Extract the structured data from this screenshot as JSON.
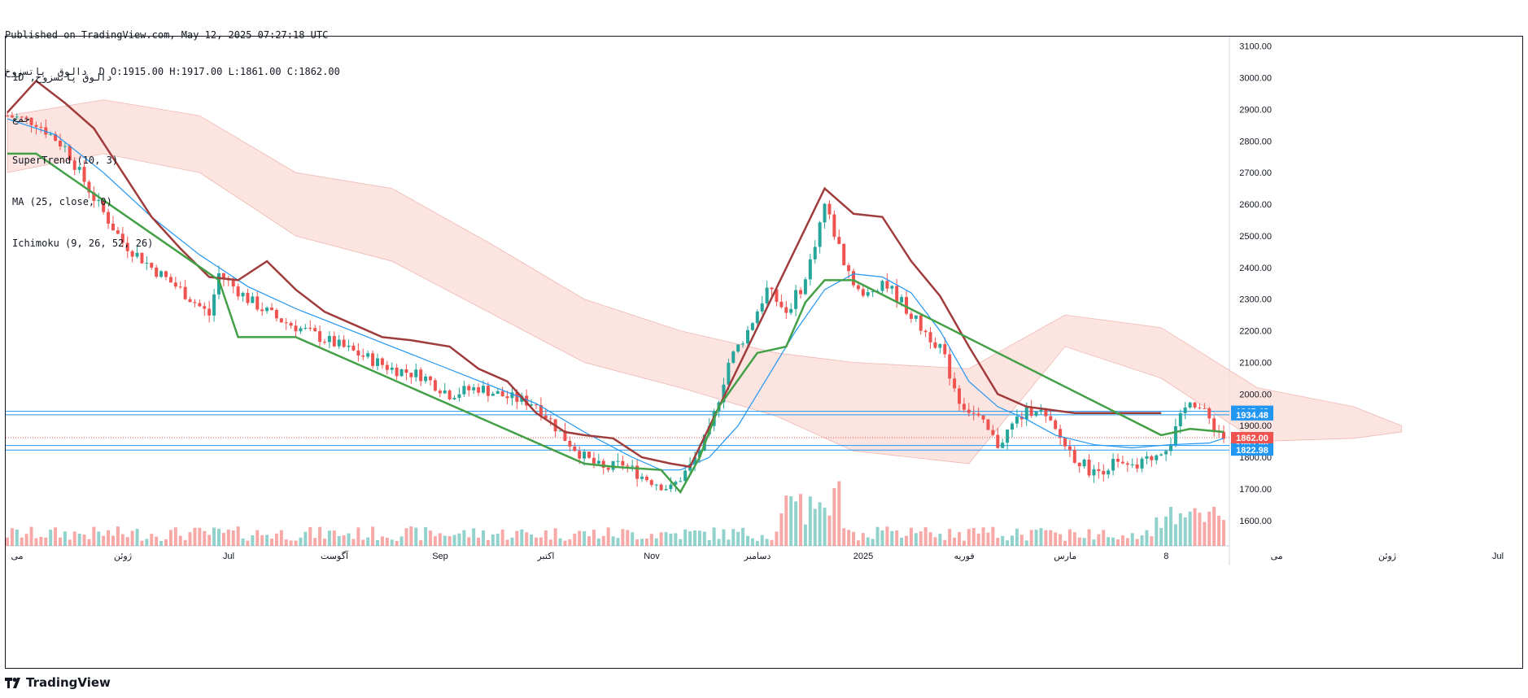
{
  "header": {
    "published": "Published on TradingView.com, May 12, 2025 07:27:18 UTC",
    "ohlc_line": "دالوق  پاتسزوخ  D O:1915.00 H:1917.00 L:1861.00 C:1862.00"
  },
  "legend": {
    "symbol": "1D ,دالوق پاتسزوخ",
    "exchange": "جمع",
    "supertrend": "SuperTrend (10, 3)",
    "ma": "MA (25, close, 0)",
    "ichimoku": "Ichimoku (9, 26, 52, 26)"
  },
  "brand": {
    "name": "TradingView",
    "icon": "tradingview-logo-icon"
  },
  "colors": {
    "up": "#26a69a",
    "down": "#ef5350",
    "supertrend_up": "#43a047",
    "supertrend_down": "#a13c3c",
    "ma": "#2196f3",
    "cloud_bear": "#fcdcd8",
    "cloud_bull": "#d5efd3",
    "hline": "#2196f3",
    "price_label": "#ef5350"
  },
  "chart_data": {
    "type": "candlestick",
    "ylim": [
      1520,
      3130
    ],
    "y_ticks": [
      1600,
      1700,
      1800,
      1900,
      2000,
      2100,
      2200,
      2300,
      2400,
      2500,
      2600,
      2700,
      2800,
      2900,
      3000,
      3100
    ],
    "y_tick_labels": [
      "1600.00",
      "1700.00",
      "1800.00",
      "1900.00",
      "2000.00",
      "2100.00",
      "2200.00",
      "2300.00",
      "2400.00",
      "2500.00",
      "2600.00",
      "2700.00",
      "2800.00",
      "2900.00",
      "3000.00",
      "3100.00"
    ],
    "x_labels": [
      "می",
      "ژوئن",
      "Jul",
      "آگوست",
      "Sep",
      "اکتبر",
      "Nov",
      "دسامبر",
      "2025",
      "فوریه",
      "مارس",
      "8",
      "می",
      "ژوئن",
      "Jul"
    ],
    "x_label_bars": [
      0,
      22,
      44,
      66,
      88,
      110,
      132,
      154,
      176,
      197,
      218,
      239,
      262,
      285,
      308
    ],
    "bar_count_visible": 330,
    "price_series": [
      [
        0,
        2880
      ],
      [
        6,
        2860
      ],
      [
        12,
        2780
      ],
      [
        18,
        2620
      ],
      [
        24,
        2480
      ],
      [
        30,
        2400
      ],
      [
        36,
        2330
      ],
      [
        42,
        2250
      ],
      [
        44,
        2380
      ],
      [
        50,
        2300
      ],
      [
        56,
        2240
      ],
      [
        62,
        2200
      ],
      [
        68,
        2160
      ],
      [
        74,
        2120
      ],
      [
        80,
        2080
      ],
      [
        86,
        2060
      ],
      [
        92,
        2000
      ],
      [
        98,
        2020
      ],
      [
        104,
        1990
      ],
      [
        110,
        1970
      ],
      [
        116,
        1860
      ],
      [
        120,
        1800
      ],
      [
        124,
        1760
      ],
      [
        128,
        1780
      ],
      [
        132,
        1740
      ],
      [
        138,
        1700
      ],
      [
        142,
        1770
      ],
      [
        146,
        1880
      ],
      [
        150,
        2100
      ],
      [
        154,
        2200
      ],
      [
        158,
        2330
      ],
      [
        162,
        2260
      ],
      [
        166,
        2360
      ],
      [
        170,
        2600
      ],
      [
        174,
        2420
      ],
      [
        178,
        2300
      ],
      [
        182,
        2360
      ],
      [
        186,
        2290
      ],
      [
        190,
        2210
      ],
      [
        194,
        2150
      ],
      [
        198,
        1980
      ],
      [
        202,
        1920
      ],
      [
        206,
        1840
      ],
      [
        210,
        1920
      ],
      [
        214,
        1960
      ],
      [
        218,
        1880
      ],
      [
        222,
        1800
      ],
      [
        226,
        1750
      ],
      [
        230,
        1780
      ],
      [
        234,
        1760
      ],
      [
        238,
        1800
      ],
      [
        242,
        1850
      ],
      [
        246,
        1990
      ],
      [
        250,
        1920
      ],
      [
        253,
        1862
      ]
    ],
    "ma_series": [
      [
        0,
        2870
      ],
      [
        10,
        2820
      ],
      [
        20,
        2700
      ],
      [
        30,
        2560
      ],
      [
        40,
        2440
      ],
      [
        50,
        2340
      ],
      [
        60,
        2270
      ],
      [
        70,
        2210
      ],
      [
        80,
        2150
      ],
      [
        90,
        2090
      ],
      [
        100,
        2030
      ],
      [
        110,
        1970
      ],
      [
        120,
        1880
      ],
      [
        130,
        1800
      ],
      [
        136,
        1760
      ],
      [
        140,
        1760
      ],
      [
        146,
        1800
      ],
      [
        152,
        1900
      ],
      [
        158,
        2050
      ],
      [
        164,
        2200
      ],
      [
        170,
        2330
      ],
      [
        176,
        2380
      ],
      [
        182,
        2370
      ],
      [
        188,
        2320
      ],
      [
        194,
        2200
      ],
      [
        200,
        2040
      ],
      [
        206,
        1960
      ],
      [
        212,
        1920
      ],
      [
        218,
        1870
      ],
      [
        226,
        1840
      ],
      [
        234,
        1830
      ],
      [
        242,
        1840
      ],
      [
        250,
        1845
      ],
      [
        253,
        1860
      ]
    ],
    "supertrend_down": [
      [
        0,
        2890
      ],
      [
        6,
        2990
      ],
      [
        12,
        2920
      ],
      [
        18,
        2840
      ],
      [
        24,
        2700
      ],
      [
        30,
        2560
      ],
      [
        36,
        2460
      ],
      [
        42,
        2370
      ],
      [
        48,
        2360
      ],
      [
        54,
        2420
      ],
      [
        60,
        2330
      ],
      [
        66,
        2260
      ],
      [
        72,
        2220
      ],
      [
        78,
        2180
      ],
      [
        84,
        2170
      ],
      [
        92,
        2150
      ],
      [
        98,
        2080
      ],
      [
        104,
        2040
      ],
      [
        110,
        1940
      ],
      [
        116,
        1880
      ],
      [
        120,
        1870
      ],
      [
        126,
        1860
      ],
      [
        132,
        1800
      ],
      [
        138,
        1780
      ],
      [
        142,
        1770
      ],
      [
        170,
        2650
      ],
      [
        176,
        2570
      ],
      [
        182,
        2560
      ],
      [
        188,
        2420
      ],
      [
        194,
        2310
      ],
      [
        200,
        2150
      ],
      [
        206,
        2000
      ],
      [
        212,
        1960
      ],
      [
        222,
        1940
      ],
      [
        230,
        1940
      ],
      [
        236,
        1940
      ],
      [
        240,
        1940
      ]
    ],
    "supertrend_up": [
      [
        0,
        2760
      ],
      [
        6,
        2760
      ],
      [
        44,
        2360
      ],
      [
        48,
        2180
      ],
      [
        56,
        2180
      ],
      [
        60,
        2180
      ],
      [
        120,
        1780
      ],
      [
        126,
        1770
      ],
      [
        136,
        1760
      ],
      [
        140,
        1690
      ],
      [
        144,
        1800
      ],
      [
        148,
        1960
      ],
      [
        156,
        2130
      ],
      [
        162,
        2150
      ],
      [
        166,
        2290
      ],
      [
        170,
        2360
      ],
      [
        176,
        2360
      ],
      [
        240,
        1870
      ],
      [
        246,
        1890
      ],
      [
        253,
        1880
      ]
    ],
    "cloud_bear_top": [
      [
        0,
        2880
      ],
      [
        20,
        2930
      ],
      [
        40,
        2880
      ],
      [
        60,
        2700
      ],
      [
        80,
        2650
      ],
      [
        100,
        2480
      ],
      [
        120,
        2300
      ],
      [
        140,
        2200
      ],
      [
        160,
        2130
      ],
      [
        176,
        2100
      ],
      [
        200,
        2080
      ],
      [
        220,
        2250
      ],
      [
        240,
        2210
      ],
      [
        260,
        2020
      ],
      [
        280,
        1960
      ],
      [
        290,
        1900
      ]
    ],
    "cloud_bear_bottom": [
      [
        0,
        2700
      ],
      [
        20,
        2760
      ],
      [
        40,
        2700
      ],
      [
        60,
        2500
      ],
      [
        80,
        2420
      ],
      [
        100,
        2260
      ],
      [
        120,
        2100
      ],
      [
        140,
        2020
      ],
      [
        160,
        1930
      ],
      [
        176,
        1820
      ],
      [
        200,
        1780
      ],
      [
        220,
        2150
      ],
      [
        240,
        2050
      ],
      [
        260,
        1850
      ],
      [
        280,
        1860
      ],
      [
        290,
        1880
      ]
    ],
    "hlines": [
      {
        "value": 1945.48,
        "label": "1945.48"
      },
      {
        "value": 1934.48,
        "label": "1934.48"
      },
      {
        "value": 1837.28,
        "label": "1837.28"
      },
      {
        "value": 1822.98,
        "label": "1822.98"
      }
    ],
    "last_price": {
      "value": 1862.0,
      "label": "1862.00"
    }
  }
}
